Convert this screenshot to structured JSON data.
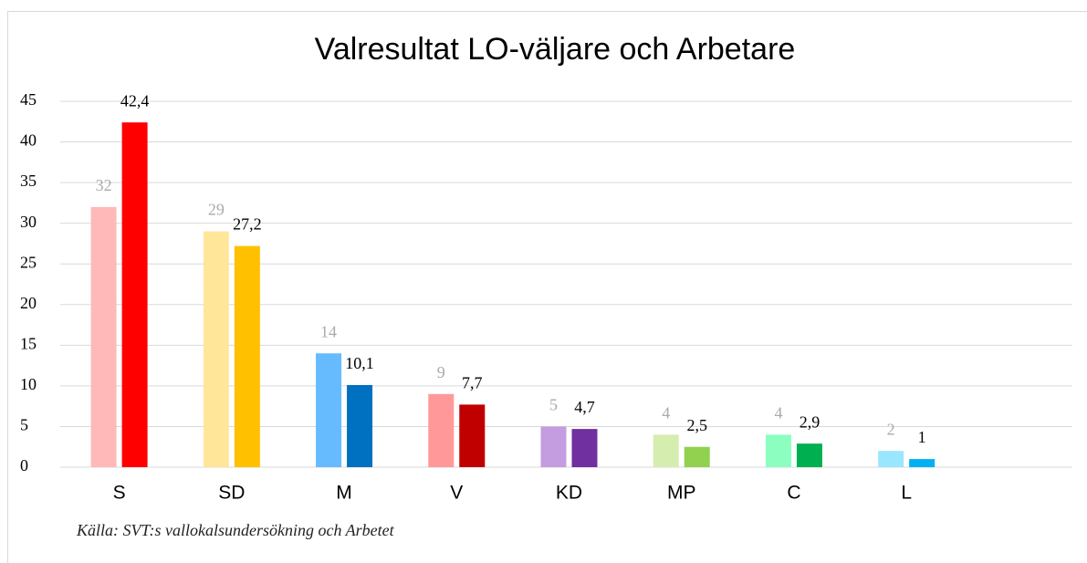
{
  "chart_data": {
    "type": "bar",
    "title": "Valresultat LO-väljare och Arbetare",
    "note": "Källa: SVT:s vallokalsundersökning och Arbetet",
    "categories": [
      "S",
      "SD",
      "M",
      "V",
      "KD",
      "MP",
      "C",
      "L",
      null
    ],
    "series": [
      {
        "colors": [
          "#ffb9b9",
          "#ffe699",
          "#66bbff",
          "#ff9999",
          "#c49de0",
          "#d5eeb0",
          "#8cffc0",
          "#99e6ff",
          null
        ],
        "label_color": "#aaaaaa",
        "values": [
          32,
          29,
          14,
          9,
          5,
          4,
          4,
          2,
          null
        ]
      },
      {
        "colors": [
          "#ff0000",
          "#ffc000",
          "#0070c0",
          "#c00000",
          "#7030a0",
          "#92d050",
          "#00b050",
          "#00b0f0",
          null
        ],
        "label_color": "#000000",
        "values": [
          42.4,
          27.2,
          10.1,
          7.7,
          4.7,
          2.5,
          2.9,
          1,
          null
        ],
        "value_labels": [
          "42,4",
          "27,2",
          "10,1",
          "7,7",
          "4,7",
          "2,5",
          "2,9",
          "1",
          null
        ]
      }
    ],
    "ylim": [
      0,
      45
    ],
    "yticks": [
      0,
      5,
      10,
      15,
      20,
      25,
      30,
      35,
      40,
      45
    ],
    "grid": true
  }
}
